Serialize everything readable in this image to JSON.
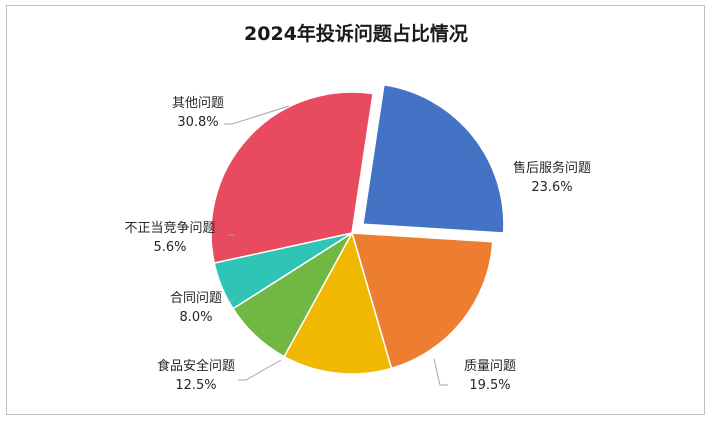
{
  "chart_data": {
    "type": "pie",
    "title": "2024年投诉问题占比情况",
    "slices": [
      {
        "name": "售后服务问题",
        "value": 23.6,
        "label": "23.6%",
        "color": "#4472c4",
        "exploded": true
      },
      {
        "name": "质量问题",
        "value": 19.5,
        "label": "19.5%",
        "color": "#ed7d31",
        "exploded": false
      },
      {
        "name": "食品安全问题",
        "value": 12.5,
        "label": "12.5%",
        "color": "#f0b800",
        "exploded": false
      },
      {
        "name": "合同问题",
        "value": 8.0,
        "label": "8.0%",
        "color": "#70b843",
        "exploded": false
      },
      {
        "name": "不正当竞争问题",
        "value": 5.6,
        "label": "5.6%",
        "color": "#2ec4b6",
        "exploded": false
      },
      {
        "name": "其他问题",
        "value": 30.8,
        "label": "30.8%",
        "color": "#e84a5f",
        "exploded": false
      }
    ],
    "start_angle_deg": 0,
    "direction": "clockwise",
    "legend": "none",
    "leader_line_color": "#a6a6a6"
  }
}
